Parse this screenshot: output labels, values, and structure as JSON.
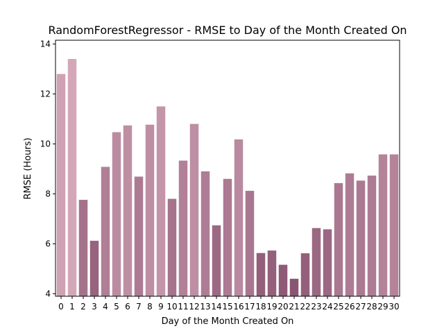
{
  "chart_data": {
    "type": "bar",
    "title": "RandomForestRegressor - RMSE to Day of the Month Created On",
    "xlabel": "Day of the Month Created On",
    "ylabel": "RMSE (Hours)",
    "categories": [
      "0",
      "1",
      "2",
      "3",
      "4",
      "5",
      "6",
      "7",
      "8",
      "9",
      "10",
      "11",
      "12",
      "13",
      "14",
      "15",
      "16",
      "17",
      "18",
      "19",
      "20",
      "21",
      "22",
      "23",
      "24",
      "25",
      "26",
      "27",
      "28",
      "29",
      "30"
    ],
    "values": [
      12.8,
      13.4,
      7.76,
      6.12,
      9.08,
      10.47,
      10.74,
      8.69,
      10.77,
      11.5,
      7.8,
      9.33,
      10.8,
      8.9,
      6.74,
      8.6,
      10.18,
      8.12,
      5.63,
      5.73,
      5.16,
      4.6,
      5.62,
      6.63,
      6.58,
      8.43,
      8.82,
      8.53,
      8.73,
      9.58,
      9.58
    ],
    "ylim": [
      3.9,
      14.15
    ],
    "yticks": [
      4,
      6,
      8,
      10,
      12,
      14
    ],
    "grid": false,
    "color_scale": {
      "light": "#d4a7b8",
      "dark": "#8a5573"
    }
  }
}
